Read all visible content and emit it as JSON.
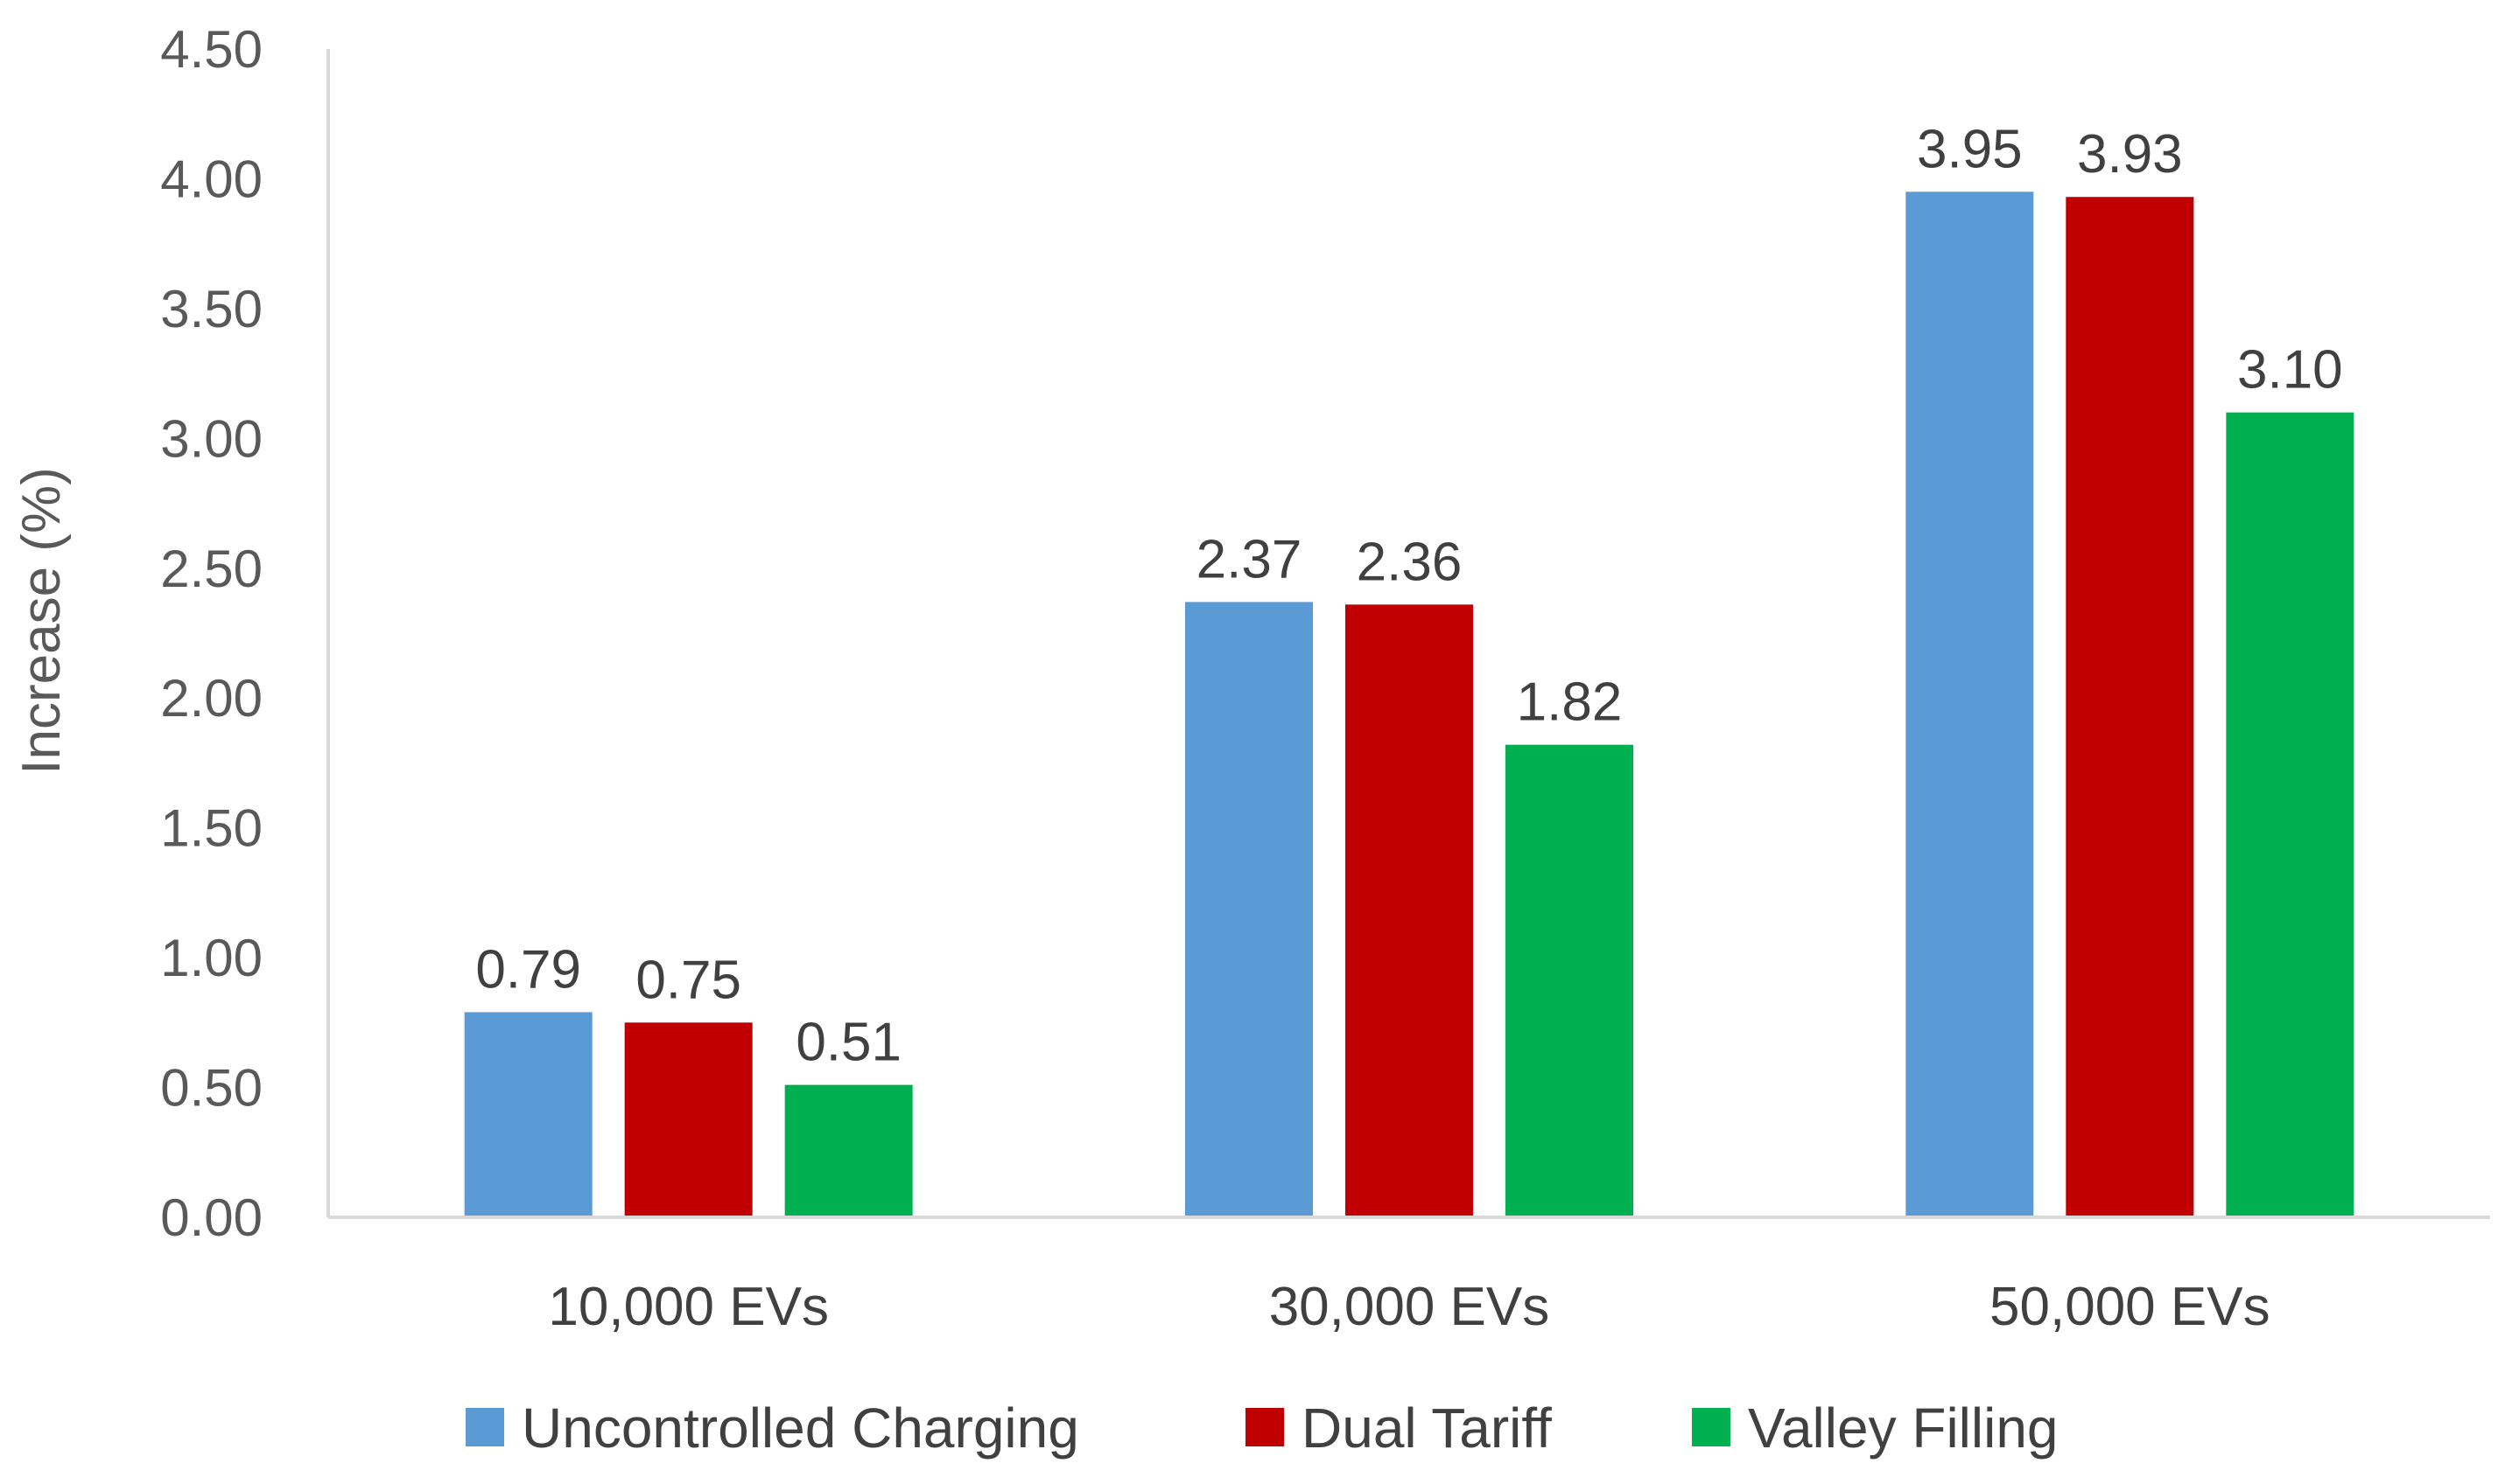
{
  "chart_data": {
    "type": "bar",
    "title": "",
    "xlabel": "",
    "ylabel": "Increase (%)",
    "ylim": [
      0,
      4.5
    ],
    "yticks": [
      "0.00",
      "0.50",
      "1.00",
      "1.50",
      "2.00",
      "2.50",
      "3.00",
      "3.50",
      "4.00",
      "4.50"
    ],
    "ytick_values": [
      0,
      0.5,
      1,
      1.5,
      2,
      2.5,
      3,
      3.5,
      4,
      4.5
    ],
    "categories": [
      "10,000 EVs",
      "30,000 EVs",
      "50,000 EVs"
    ],
    "series": [
      {
        "name": "Uncontrolled Charging",
        "color": "#5B9BD5",
        "values": [
          0.79,
          2.37,
          3.95
        ],
        "labels": [
          "0.79",
          "2.37",
          "3.95"
        ]
      },
      {
        "name": "Dual Tariff",
        "color": "#C00000",
        "values": [
          0.75,
          2.36,
          3.93
        ],
        "labels": [
          "0.75",
          "2.36",
          "3.93"
        ]
      },
      {
        "name": "Valley Filling",
        "color": "#00B050",
        "values": [
          0.51,
          1.82,
          3.1
        ],
        "labels": [
          "0.51",
          "1.82",
          "3.10"
        ]
      }
    ],
    "grid": false,
    "legend_position": "bottom"
  },
  "colors": {
    "axis_line": "#D9D9D9",
    "tick_text": "#595959",
    "label_text": "#404040"
  }
}
